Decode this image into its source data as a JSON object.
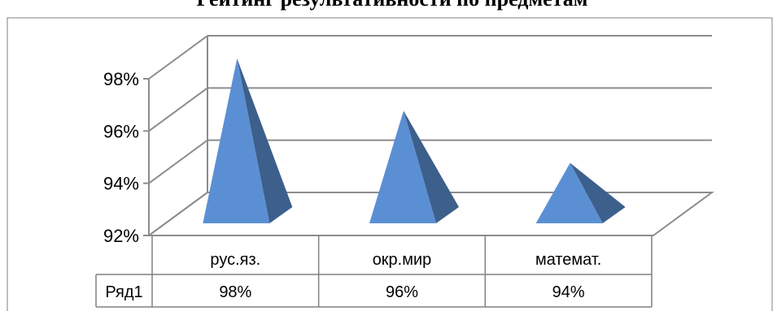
{
  "chart_data": {
    "type": "bar",
    "bar_shape": "3d-pyramid",
    "title": "Рейтинг результативности по предметам",
    "categories": [
      "рус.яз.",
      "окр.мир",
      "математ."
    ],
    "series": [
      {
        "name": "Ряд1",
        "values": [
          0.98,
          0.96,
          0.94
        ]
      }
    ],
    "value_labels": [
      "98%",
      "96%",
      "94%"
    ],
    "y_ticks": [
      "92%",
      "94%",
      "96%",
      "98%"
    ],
    "ylim": [
      0.92,
      0.98
    ],
    "grid": true,
    "data_table": true,
    "colors": {
      "front": "#5b8fd4",
      "side": "#3d5f8c",
      "grid": "#8c8c8c"
    }
  }
}
